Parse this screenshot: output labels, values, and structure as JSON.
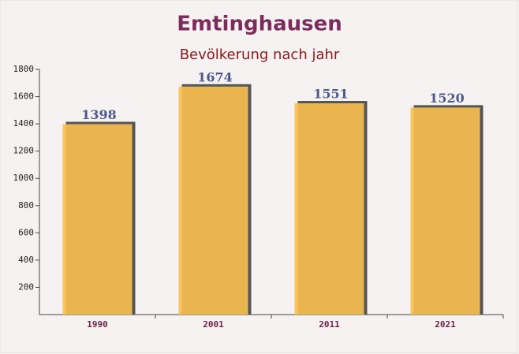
{
  "chart_data": {
    "type": "bar",
    "title": "Emtinghausen",
    "subtitle": "Bevölkerung nach jahr",
    "categories": [
      "1990",
      "2001",
      "2011",
      "2021"
    ],
    "values": [
      1398,
      1674,
      1551,
      1520
    ],
    "color": "#fbc04e",
    "ylim": [
      0,
      1800
    ],
    "yticks": [
      200,
      400,
      600,
      800,
      1000,
      1200,
      1400,
      1600,
      1800
    ]
  }
}
